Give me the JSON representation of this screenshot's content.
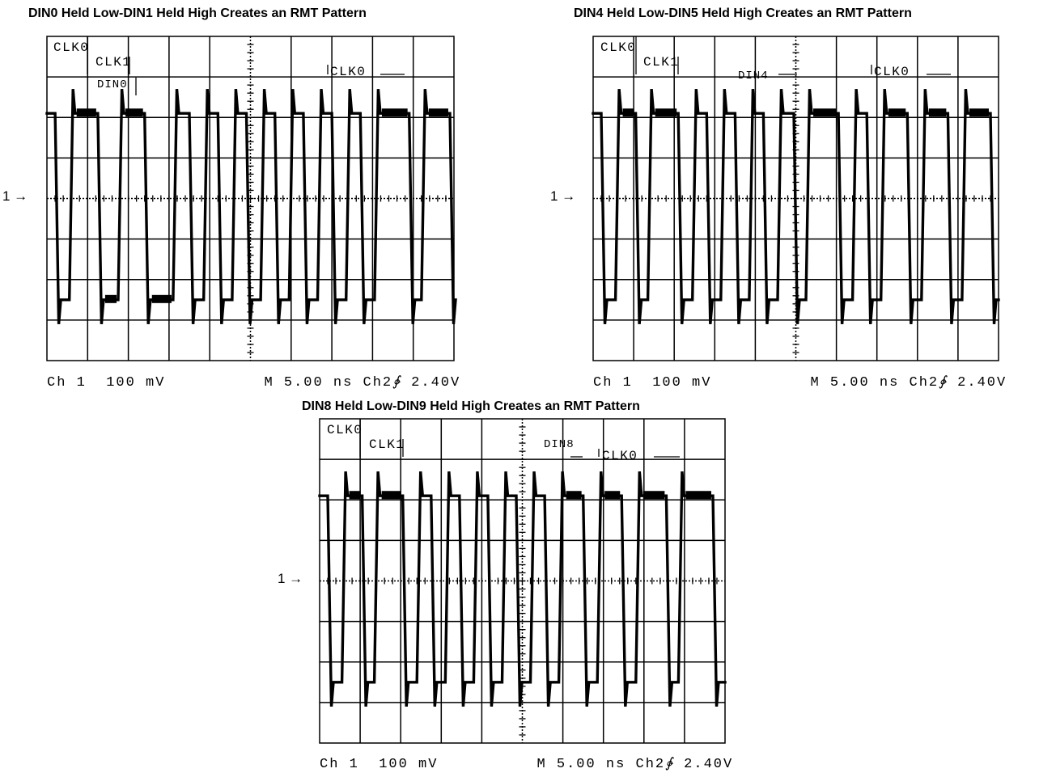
{
  "panels": [
    {
      "title": "DIN0 Held Low-DIN1 Held High Creates an RMT Pattern",
      "marker": "1 →",
      "footer": {
        "channel": "Ch 1",
        "scale": "100 mV",
        "timebase": "M 5.00 ns",
        "trigger_ch": "Ch2",
        "trigger_icon": "rising-edge-trigger-icon",
        "trigger_glyph": "∲",
        "trigger_level": "2.40V"
      },
      "labels": [
        {
          "text": "CLK0",
          "kind": "clk"
        },
        {
          "text": "CLK1",
          "kind": "clk"
        },
        {
          "text": "DIN0",
          "kind": "din"
        },
        {
          "text": "CLK0",
          "kind": "clk"
        }
      ],
      "chart_data": {
        "type": "line",
        "x_unit": "divisions (5.00 ns/div)",
        "y_unit": "divisions (100 mV/div)",
        "xlim": [
          0,
          10
        ],
        "ylim": [
          -4,
          4
        ],
        "grid": true,
        "series": [
          {
            "name": "Ch 1",
            "high": 2.1,
            "low": -2.5,
            "overshoot": 0.6,
            "transitions": [
              [
                0.2,
                "L"
              ],
              [
                0.55,
                "H"
              ],
              [
                1.25,
                "L"
              ],
              [
                1.75,
                "H"
              ],
              [
                2.4,
                "L"
              ],
              [
                3.1,
                "H"
              ],
              [
                3.5,
                "L"
              ],
              [
                3.85,
                "H"
              ],
              [
                4.2,
                "L"
              ],
              [
                4.55,
                "H"
              ],
              [
                4.9,
                "L"
              ],
              [
                5.25,
                "H"
              ],
              [
                5.6,
                "L"
              ],
              [
                5.95,
                "H"
              ],
              [
                6.3,
                "L"
              ],
              [
                6.65,
                "H"
              ],
              [
                7.0,
                "L"
              ],
              [
                7.35,
                "H"
              ],
              [
                7.7,
                "L"
              ],
              [
                8.05,
                "H"
              ],
              [
                8.9,
                "L"
              ],
              [
                9.2,
                "H"
              ],
              [
                9.9,
                "L"
              ]
            ]
          }
        ]
      }
    },
    {
      "title": "DIN4 Held Low-DIN5 Held High Creates an RMT Pattern",
      "marker": "1 →",
      "footer": {
        "channel": "Ch 1",
        "scale": "100 mV",
        "timebase": "M 5.00 ns",
        "trigger_ch": "Ch2",
        "trigger_icon": "rising-edge-trigger-icon",
        "trigger_glyph": "∲",
        "trigger_level": "2.40V"
      },
      "labels": [
        {
          "text": "CLK0",
          "kind": "clk"
        },
        {
          "text": "CLK1",
          "kind": "clk"
        },
        {
          "text": "DIN4",
          "kind": "din"
        },
        {
          "text": "CLK0",
          "kind": "clk"
        }
      ],
      "chart_data": {
        "type": "line",
        "x_unit": "divisions (5.00 ns/div)",
        "y_unit": "divisions (100 mV/div)",
        "xlim": [
          0,
          10
        ],
        "ylim": [
          -4,
          4
        ],
        "grid": true,
        "series": [
          {
            "name": "Ch 1",
            "high": 2.1,
            "low": -2.5,
            "overshoot": 0.6,
            "transitions": [
              [
                0.2,
                "L"
              ],
              [
                0.55,
                "H"
              ],
              [
                1.05,
                "L"
              ],
              [
                1.35,
                "H"
              ],
              [
                2.1,
                "L"
              ],
              [
                2.45,
                "H"
              ],
              [
                2.8,
                "L"
              ],
              [
                3.15,
                "H"
              ],
              [
                3.5,
                "L"
              ],
              [
                3.85,
                "H"
              ],
              [
                4.2,
                "L"
              ],
              [
                4.55,
                "H"
              ],
              [
                4.95,
                "L"
              ],
              [
                5.25,
                "H"
              ],
              [
                6.05,
                "L"
              ],
              [
                6.4,
                "H"
              ],
              [
                6.75,
                "L"
              ],
              [
                7.1,
                "H"
              ],
              [
                7.75,
                "L"
              ],
              [
                8.1,
                "H"
              ],
              [
                8.75,
                "L"
              ],
              [
                9.1,
                "H"
              ],
              [
                9.8,
                "L"
              ]
            ]
          }
        ]
      }
    },
    {
      "title": "DIN8 Held Low-DIN9 Held High Creates an RMT Pattern",
      "marker": "1 →",
      "footer": {
        "channel": "Ch 1",
        "scale": "100 mV",
        "timebase": "M 5.00 ns",
        "trigger_ch": "Ch2",
        "trigger_icon": "rising-edge-trigger-icon",
        "trigger_glyph": "∲",
        "trigger_level": "2.40V"
      },
      "labels": [
        {
          "text": "CLK0",
          "kind": "clk"
        },
        {
          "text": "CLK1",
          "kind": "clk"
        },
        {
          "text": "DIN8",
          "kind": "din"
        },
        {
          "text": "CLK0",
          "kind": "clk"
        }
      ],
      "chart_data": {
        "type": "line",
        "x_unit": "divisions (5.00 ns/div)",
        "y_unit": "divisions (100 mV/div)",
        "xlim": [
          0,
          10
        ],
        "ylim": [
          -4,
          4
        ],
        "grid": true,
        "series": [
          {
            "name": "Ch 1",
            "high": 2.1,
            "low": -2.5,
            "overshoot": 0.6,
            "transitions": [
              [
                0.2,
                "L"
              ],
              [
                0.55,
                "H"
              ],
              [
                1.05,
                "L"
              ],
              [
                1.35,
                "H"
              ],
              [
                2.05,
                "L"
              ],
              [
                2.4,
                "H"
              ],
              [
                2.75,
                "L"
              ],
              [
                3.1,
                "H"
              ],
              [
                3.45,
                "L"
              ],
              [
                3.8,
                "H"
              ],
              [
                4.15,
                "L"
              ],
              [
                4.5,
                "H"
              ],
              [
                4.85,
                "L"
              ],
              [
                5.2,
                "H"
              ],
              [
                5.55,
                "L"
              ],
              [
                5.9,
                "H"
              ],
              [
                6.5,
                "L"
              ],
              [
                6.85,
                "H"
              ],
              [
                7.45,
                "L"
              ],
              [
                7.8,
                "H"
              ],
              [
                8.55,
                "L"
              ],
              [
                8.85,
                "H"
              ],
              [
                9.7,
                "L"
              ]
            ]
          }
        ]
      }
    }
  ]
}
